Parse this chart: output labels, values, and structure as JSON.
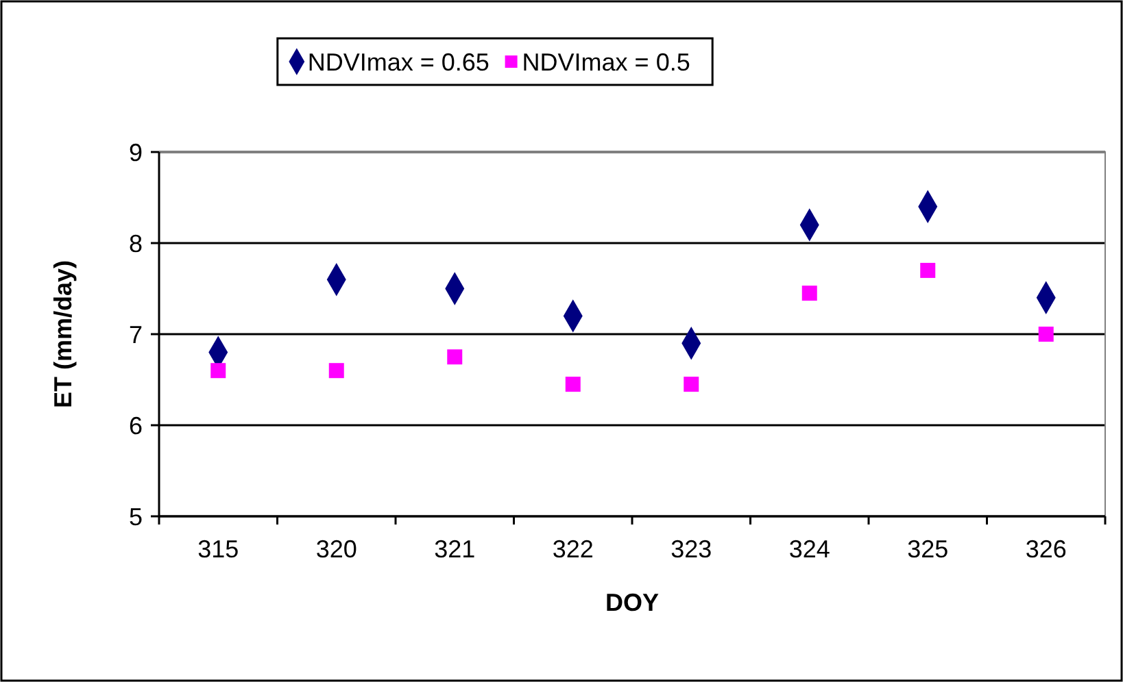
{
  "chart_data": {
    "type": "scatter",
    "xlabel": "DOY",
    "ylabel": "ET (mm/day)",
    "categories": [
      "315",
      "320",
      "321",
      "322",
      "323",
      "324",
      "325",
      "326"
    ],
    "series": [
      {
        "name": "NDVImax = 0.65",
        "color": "#000080",
        "marker": "diamond",
        "values": [
          6.8,
          7.6,
          7.5,
          7.2,
          6.9,
          8.2,
          8.4,
          7.4
        ]
      },
      {
        "name": "NDVImax = 0.5",
        "color": "#ff00ff",
        "marker": "square",
        "values": [
          6.6,
          6.6,
          6.75,
          6.45,
          6.45,
          7.45,
          7.7,
          7.0
        ]
      }
    ],
    "ylim": [
      5,
      9
    ],
    "yticks": [
      5,
      6,
      7,
      8,
      9
    ],
    "grid": "y",
    "legend": "top"
  }
}
